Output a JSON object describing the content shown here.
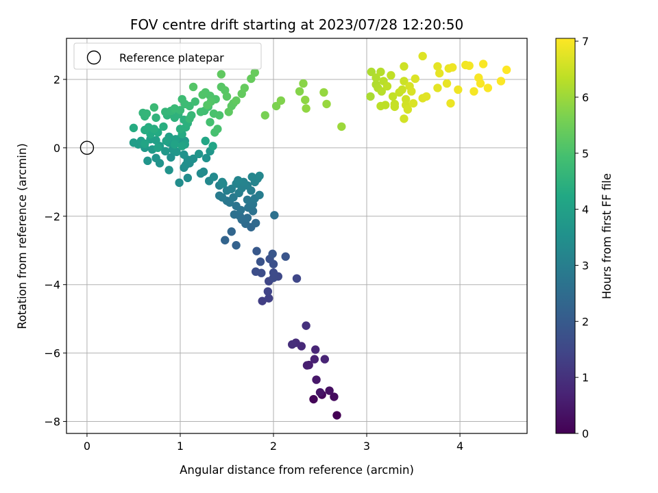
{
  "chart_data": {
    "type": "scatter",
    "title": "FOV centre drift starting at 2023/07/28 12:20:50",
    "xlabel": "Angular distance from reference (arcmin)",
    "ylabel": "Rotation from reference (arcmin)",
    "xlim": [
      -0.22,
      4.72
    ],
    "ylim": [
      -8.35,
      3.2
    ],
    "xticks": [
      0,
      1,
      2,
      3,
      4
    ],
    "yticks": [
      -8,
      -6,
      -4,
      -2,
      0,
      2
    ],
    "grid": true,
    "legend": {
      "placement": "top-left",
      "entries": [
        "Reference platepar"
      ]
    },
    "reference_point": {
      "x": 0,
      "y": 0,
      "marker": "open-circle"
    },
    "colorbar": {
      "label": "Hours from first FF file",
      "range": [
        0,
        7.05
      ],
      "ticks": [
        0,
        1,
        2,
        3,
        4,
        5,
        6,
        7
      ],
      "colormap": "viridis"
    },
    "points": [
      {
        "x": 2.68,
        "y": -7.82,
        "c": 0.0
      },
      {
        "x": 2.43,
        "y": -7.35,
        "c": 0.08
      },
      {
        "x": 2.52,
        "y": -7.22,
        "c": 0.15
      },
      {
        "x": 2.65,
        "y": -7.28,
        "c": 0.22
      },
      {
        "x": 2.6,
        "y": -7.1,
        "c": 0.3
      },
      {
        "x": 2.5,
        "y": -7.15,
        "c": 0.38
      },
      {
        "x": 2.46,
        "y": -6.78,
        "c": 0.45
      },
      {
        "x": 2.38,
        "y": -6.35,
        "c": 0.55
      },
      {
        "x": 2.36,
        "y": -6.36,
        "c": 0.6
      },
      {
        "x": 2.44,
        "y": -6.18,
        "c": 0.65
      },
      {
        "x": 2.55,
        "y": -6.18,
        "c": 0.7
      },
      {
        "x": 2.45,
        "y": -5.9,
        "c": 0.75
      },
      {
        "x": 2.3,
        "y": -5.8,
        "c": 0.82
      },
      {
        "x": 2.24,
        "y": -5.7,
        "c": 0.88
      },
      {
        "x": 2.2,
        "y": -5.75,
        "c": 0.95
      },
      {
        "x": 2.35,
        "y": -5.2,
        "c": 1.0
      },
      {
        "x": 1.88,
        "y": -4.48,
        "c": 1.3
      },
      {
        "x": 1.95,
        "y": -4.4,
        "c": 1.35
      },
      {
        "x": 1.94,
        "y": -4.2,
        "c": 1.4
      },
      {
        "x": 1.95,
        "y": -3.9,
        "c": 1.45
      },
      {
        "x": 2.25,
        "y": -3.82,
        "c": 1.5
      },
      {
        "x": 2.05,
        "y": -3.76,
        "c": 1.55
      },
      {
        "x": 2.0,
        "y": -3.8,
        "c": 1.58
      },
      {
        "x": 2.0,
        "y": -3.65,
        "c": 1.6
      },
      {
        "x": 1.87,
        "y": -3.66,
        "c": 1.65
      },
      {
        "x": 1.81,
        "y": -3.62,
        "c": 1.68
      },
      {
        "x": 2.0,
        "y": -3.4,
        "c": 1.72
      },
      {
        "x": 1.96,
        "y": -3.25,
        "c": 1.76
      },
      {
        "x": 1.86,
        "y": -3.33,
        "c": 1.8
      },
      {
        "x": 2.13,
        "y": -3.18,
        "c": 1.85
      },
      {
        "x": 1.99,
        "y": -3.1,
        "c": 1.88
      },
      {
        "x": 1.82,
        "y": -3.02,
        "c": 1.92
      },
      {
        "x": 1.6,
        "y": -2.85,
        "c": 2.2
      },
      {
        "x": 1.48,
        "y": -2.7,
        "c": 2.25
      },
      {
        "x": 1.55,
        "y": -2.45,
        "c": 2.3
      },
      {
        "x": 1.76,
        "y": -2.32,
        "c": 2.35
      },
      {
        "x": 1.81,
        "y": -2.2,
        "c": 2.4
      },
      {
        "x": 1.7,
        "y": -2.22,
        "c": 2.45
      },
      {
        "x": 1.66,
        "y": -2.1,
        "c": 2.5
      },
      {
        "x": 1.72,
        "y": -2.05,
        "c": 2.55
      },
      {
        "x": 1.64,
        "y": -2.0,
        "c": 2.58
      },
      {
        "x": 1.58,
        "y": -1.95,
        "c": 2.6
      },
      {
        "x": 2.01,
        "y": -1.97,
        "c": 2.62
      },
      {
        "x": 1.78,
        "y": -1.85,
        "c": 2.65
      },
      {
        "x": 1.65,
        "y": -1.82,
        "c": 2.68
      },
      {
        "x": 1.73,
        "y": -1.75,
        "c": 2.7
      },
      {
        "x": 1.6,
        "y": -1.7,
        "c": 2.72
      },
      {
        "x": 1.78,
        "y": -1.65,
        "c": 2.75
      },
      {
        "x": 1.53,
        "y": -1.6,
        "c": 2.78
      },
      {
        "x": 1.5,
        "y": -1.55,
        "c": 2.8
      },
      {
        "x": 1.72,
        "y": -1.52,
        "c": 2.82
      },
      {
        "x": 1.8,
        "y": -1.48,
        "c": 2.85
      },
      {
        "x": 1.57,
        "y": -1.45,
        "c": 2.88
      },
      {
        "x": 1.45,
        "y": -1.45,
        "c": 2.9
      },
      {
        "x": 1.42,
        "y": -1.4,
        "c": 2.92
      },
      {
        "x": 1.85,
        "y": -1.38,
        "c": 2.95
      },
      {
        "x": 1.63,
        "y": -1.32,
        "c": 2.98
      },
      {
        "x": 1.76,
        "y": -1.25,
        "c": 3.0
      },
      {
        "x": 1.5,
        "y": -1.25,
        "c": 3.02
      },
      {
        "x": 1.55,
        "y": -1.2,
        "c": 3.04
      },
      {
        "x": 1.66,
        "y": -1.18,
        "c": 3.06
      },
      {
        "x": 1.72,
        "y": -1.1,
        "c": 3.08
      },
      {
        "x": 1.42,
        "y": -1.1,
        "c": 3.1
      },
      {
        "x": 1.6,
        "y": -1.05,
        "c": 3.12
      },
      {
        "x": 1.68,
        "y": -1.0,
        "c": 3.14
      },
      {
        "x": 1.8,
        "y": -1.0,
        "c": 3.16
      },
      {
        "x": 1.62,
        "y": -0.95,
        "c": 3.18
      },
      {
        "x": 1.83,
        "y": -0.9,
        "c": 3.2
      },
      {
        "x": 1.77,
        "y": -0.85,
        "c": 3.22
      },
      {
        "x": 1.85,
        "y": -0.82,
        "c": 3.24
      },
      {
        "x": 1.45,
        "y": -1.0,
        "c": 3.26
      },
      {
        "x": 1.31,
        "y": -0.97,
        "c": 3.28
      },
      {
        "x": 1.46,
        "y": -1.05,
        "c": 3.3
      },
      {
        "x": 1.36,
        "y": -0.85,
        "c": 3.32
      },
      {
        "x": 1.22,
        "y": -0.75,
        "c": 3.34
      },
      {
        "x": 1.25,
        "y": -0.7,
        "c": 3.36
      },
      {
        "x": 1.08,
        "y": -0.88,
        "c": 3.38
      },
      {
        "x": 0.99,
        "y": -1.02,
        "c": 3.4
      },
      {
        "x": 1.04,
        "y": -0.58,
        "c": 3.42
      },
      {
        "x": 1.1,
        "y": -0.45,
        "c": 3.44
      },
      {
        "x": 1.06,
        "y": -0.5,
        "c": 3.46
      },
      {
        "x": 1.08,
        "y": -0.35,
        "c": 3.48
      },
      {
        "x": 1.14,
        "y": -0.32,
        "c": 3.5
      },
      {
        "x": 1.28,
        "y": -0.3,
        "c": 3.52
      },
      {
        "x": 0.9,
        "y": -0.28,
        "c": 3.54
      },
      {
        "x": 1.04,
        "y": -0.2,
        "c": 3.56
      },
      {
        "x": 0.88,
        "y": -0.65,
        "c": 3.58
      },
      {
        "x": 0.78,
        "y": -0.45,
        "c": 3.6
      },
      {
        "x": 0.74,
        "y": -0.3,
        "c": 3.62
      },
      {
        "x": 0.65,
        "y": -0.38,
        "c": 3.64
      },
      {
        "x": 1.2,
        "y": -0.18,
        "c": 3.66
      },
      {
        "x": 1.32,
        "y": -0.1,
        "c": 3.68
      },
      {
        "x": 0.96,
        "y": -0.12,
        "c": 3.7
      },
      {
        "x": 0.92,
        "y": -0.05,
        "c": 3.72
      },
      {
        "x": 0.84,
        "y": -0.1,
        "c": 3.74
      },
      {
        "x": 0.7,
        "y": -0.05,
        "c": 3.76
      },
      {
        "x": 0.62,
        "y": 0.0,
        "c": 3.78
      },
      {
        "x": 0.78,
        "y": 0.05,
        "c": 3.8
      },
      {
        "x": 0.88,
        "y": 0.15,
        "c": 3.82
      },
      {
        "x": 0.98,
        "y": 0.25,
        "c": 3.84
      },
      {
        "x": 1.05,
        "y": 0.2,
        "c": 3.86
      },
      {
        "x": 0.55,
        "y": 0.1,
        "c": 3.88
      },
      {
        "x": 0.5,
        "y": 0.15,
        "c": 3.9
      },
      {
        "x": 0.58,
        "y": 0.2,
        "c": 3.92
      },
      {
        "x": 0.74,
        "y": 0.22,
        "c": 3.94
      },
      {
        "x": 0.68,
        "y": 0.25,
        "c": 3.96
      },
      {
        "x": 0.88,
        "y": 0.32,
        "c": 3.98
      },
      {
        "x": 0.95,
        "y": 0.25,
        "c": 4.0
      },
      {
        "x": 1.05,
        "y": 0.1,
        "c": 4.02
      },
      {
        "x": 0.76,
        "y": 0.0,
        "c": 4.04
      },
      {
        "x": 0.85,
        "y": 0.2,
        "c": 4.06
      },
      {
        "x": 0.94,
        "y": 0.1,
        "c": 4.08
      },
      {
        "x": 1.02,
        "y": 0.05,
        "c": 4.1
      },
      {
        "x": 0.62,
        "y": 0.12,
        "c": 4.12
      },
      {
        "x": 1.35,
        "y": 0.05,
        "c": 4.14
      },
      {
        "x": 1.27,
        "y": 0.2,
        "c": 4.18
      },
      {
        "x": 0.68,
        "y": 0.4,
        "c": 4.25
      },
      {
        "x": 0.76,
        "y": 0.45,
        "c": 4.28
      },
      {
        "x": 1.02,
        "y": 0.4,
        "c": 4.3
      },
      {
        "x": 0.5,
        "y": 0.58,
        "c": 4.32
      },
      {
        "x": 0.62,
        "y": 0.52,
        "c": 4.34
      },
      {
        "x": 0.66,
        "y": 0.6,
        "c": 4.36
      },
      {
        "x": 0.72,
        "y": 0.55,
        "c": 4.38
      },
      {
        "x": 0.82,
        "y": 0.62,
        "c": 4.4
      },
      {
        "x": 1.0,
        "y": 0.55,
        "c": 4.42
      },
      {
        "x": 1.06,
        "y": 0.6,
        "c": 4.44
      },
      {
        "x": 1.08,
        "y": 0.72,
        "c": 4.46
      },
      {
        "x": 1.04,
        "y": 0.82,
        "c": 4.48
      },
      {
        "x": 0.94,
        "y": 0.88,
        "c": 4.5
      },
      {
        "x": 0.98,
        "y": 0.98,
        "c": 4.52
      },
      {
        "x": 0.86,
        "y": 0.95,
        "c": 4.54
      },
      {
        "x": 0.74,
        "y": 0.88,
        "c": 4.56
      },
      {
        "x": 0.62,
        "y": 0.92,
        "c": 4.58
      },
      {
        "x": 0.6,
        "y": 1.02,
        "c": 4.6
      },
      {
        "x": 0.64,
        "y": 1.0,
        "c": 4.62
      },
      {
        "x": 0.84,
        "y": 1.05,
        "c": 4.64
      },
      {
        "x": 0.9,
        "y": 1.08,
        "c": 4.66
      },
      {
        "x": 1.1,
        "y": 0.85,
        "c": 4.68
      },
      {
        "x": 1.12,
        "y": 0.95,
        "c": 4.7
      },
      {
        "x": 1.0,
        "y": 1.1,
        "c": 4.72
      },
      {
        "x": 0.94,
        "y": 1.15,
        "c": 4.74
      },
      {
        "x": 0.72,
        "y": 1.18,
        "c": 4.76
      },
      {
        "x": 1.1,
        "y": 1.22,
        "c": 4.78
      },
      {
        "x": 1.05,
        "y": 1.28,
        "c": 4.8
      },
      {
        "x": 1.02,
        "y": 1.42,
        "c": 4.82
      },
      {
        "x": 1.16,
        "y": 1.35,
        "c": 4.85
      },
      {
        "x": 1.26,
        "y": 1.08,
        "c": 4.88
      },
      {
        "x": 1.22,
        "y": 1.05,
        "c": 4.9
      },
      {
        "x": 1.3,
        "y": 1.2,
        "c": 4.92
      },
      {
        "x": 1.32,
        "y": 0.75,
        "c": 4.94
      },
      {
        "x": 1.37,
        "y": 0.45,
        "c": 4.96
      },
      {
        "x": 1.4,
        "y": 0.55,
        "c": 4.98
      },
      {
        "x": 1.36,
        "y": 1.0,
        "c": 5.0
      },
      {
        "x": 1.42,
        "y": 0.95,
        "c": 5.02
      },
      {
        "x": 1.38,
        "y": 1.42,
        "c": 5.04
      },
      {
        "x": 1.32,
        "y": 1.52,
        "c": 5.06
      },
      {
        "x": 1.27,
        "y": 1.62,
        "c": 5.08
      },
      {
        "x": 1.24,
        "y": 1.55,
        "c": 5.1
      },
      {
        "x": 1.33,
        "y": 1.35,
        "c": 5.12
      },
      {
        "x": 1.14,
        "y": 1.78,
        "c": 5.14
      },
      {
        "x": 1.29,
        "y": 1.25,
        "c": 5.16
      },
      {
        "x": 1.44,
        "y": 1.78,
        "c": 5.18
      },
      {
        "x": 1.48,
        "y": 1.68,
        "c": 5.2
      },
      {
        "x": 1.5,
        "y": 1.5,
        "c": 5.22
      },
      {
        "x": 1.55,
        "y": 1.22,
        "c": 5.24
      },
      {
        "x": 1.57,
        "y": 1.3,
        "c": 5.26
      },
      {
        "x": 1.52,
        "y": 1.05,
        "c": 5.28
      },
      {
        "x": 1.44,
        "y": 2.15,
        "c": 5.3
      },
      {
        "x": 1.6,
        "y": 1.38,
        "c": 5.32
      },
      {
        "x": 1.66,
        "y": 1.58,
        "c": 5.34
      },
      {
        "x": 1.69,
        "y": 1.75,
        "c": 5.36
      },
      {
        "x": 1.76,
        "y": 2.02,
        "c": 5.38
      },
      {
        "x": 1.8,
        "y": 2.2,
        "c": 5.4
      },
      {
        "x": 1.91,
        "y": 0.95,
        "c": 5.6
      },
      {
        "x": 2.03,
        "y": 1.22,
        "c": 5.65
      },
      {
        "x": 2.08,
        "y": 1.38,
        "c": 5.7
      },
      {
        "x": 2.28,
        "y": 1.65,
        "c": 5.75
      },
      {
        "x": 2.32,
        "y": 1.88,
        "c": 5.8
      },
      {
        "x": 2.34,
        "y": 1.4,
        "c": 5.85
      },
      {
        "x": 2.35,
        "y": 1.15,
        "c": 5.88
      },
      {
        "x": 2.54,
        "y": 1.62,
        "c": 5.92
      },
      {
        "x": 2.57,
        "y": 1.28,
        "c": 5.95
      },
      {
        "x": 2.73,
        "y": 0.62,
        "c": 6.0
      },
      {
        "x": 3.04,
        "y": 1.5,
        "c": 6.15
      },
      {
        "x": 3.05,
        "y": 2.22,
        "c": 6.18
      },
      {
        "x": 3.1,
        "y": 1.85,
        "c": 6.2
      },
      {
        "x": 3.1,
        "y": 2.05,
        "c": 6.22
      },
      {
        "x": 3.12,
        "y": 1.75,
        "c": 6.24
      },
      {
        "x": 3.15,
        "y": 2.22,
        "c": 6.26
      },
      {
        "x": 3.16,
        "y": 1.65,
        "c": 6.28
      },
      {
        "x": 3.18,
        "y": 1.95,
        "c": 6.3
      },
      {
        "x": 3.15,
        "y": 1.22,
        "c": 6.32
      },
      {
        "x": 3.2,
        "y": 1.25,
        "c": 6.34
      },
      {
        "x": 3.22,
        "y": 1.8,
        "c": 6.36
      },
      {
        "x": 3.26,
        "y": 2.12,
        "c": 6.38
      },
      {
        "x": 3.28,
        "y": 1.5,
        "c": 6.4
      },
      {
        "x": 3.3,
        "y": 1.28,
        "c": 6.42
      },
      {
        "x": 3.3,
        "y": 1.2,
        "c": 6.44
      },
      {
        "x": 3.35,
        "y": 1.62,
        "c": 6.46
      },
      {
        "x": 3.38,
        "y": 1.7,
        "c": 6.48
      },
      {
        "x": 3.4,
        "y": 1.95,
        "c": 6.5
      },
      {
        "x": 3.4,
        "y": 2.38,
        "c": 6.52
      },
      {
        "x": 3.42,
        "y": 1.42,
        "c": 6.54
      },
      {
        "x": 3.42,
        "y": 1.25,
        "c": 6.56
      },
      {
        "x": 3.4,
        "y": 0.85,
        "c": 6.58
      },
      {
        "x": 3.44,
        "y": 1.12,
        "c": 6.6
      },
      {
        "x": 3.46,
        "y": 1.8,
        "c": 6.62
      },
      {
        "x": 3.48,
        "y": 1.65,
        "c": 6.64
      },
      {
        "x": 3.5,
        "y": 1.3,
        "c": 6.66
      },
      {
        "x": 3.52,
        "y": 2.02,
        "c": 6.68
      },
      {
        "x": 3.6,
        "y": 2.68,
        "c": 6.7
      },
      {
        "x": 3.6,
        "y": 1.45,
        "c": 6.72
      },
      {
        "x": 3.64,
        "y": 1.5,
        "c": 6.74
      },
      {
        "x": 3.76,
        "y": 1.75,
        "c": 6.76
      },
      {
        "x": 3.76,
        "y": 2.38,
        "c": 6.78
      },
      {
        "x": 3.78,
        "y": 2.18,
        "c": 6.8
      },
      {
        "x": 3.86,
        "y": 1.88,
        "c": 6.82
      },
      {
        "x": 3.88,
        "y": 2.32,
        "c": 6.84
      },
      {
        "x": 3.9,
        "y": 1.3,
        "c": 6.86
      },
      {
        "x": 3.92,
        "y": 2.35,
        "c": 6.88
      },
      {
        "x": 3.98,
        "y": 1.7,
        "c": 6.9
      },
      {
        "x": 4.06,
        "y": 2.42,
        "c": 6.92
      },
      {
        "x": 4.1,
        "y": 2.4,
        "c": 6.94
      },
      {
        "x": 4.15,
        "y": 1.65,
        "c": 6.96
      },
      {
        "x": 4.2,
        "y": 2.05,
        "c": 6.98
      },
      {
        "x": 4.22,
        "y": 1.88,
        "c": 7.0
      },
      {
        "x": 4.25,
        "y": 2.45,
        "c": 7.01
      },
      {
        "x": 4.3,
        "y": 1.75,
        "c": 7.02
      },
      {
        "x": 4.44,
        "y": 1.95,
        "c": 7.03
      },
      {
        "x": 4.5,
        "y": 2.28,
        "c": 7.05
      }
    ]
  }
}
